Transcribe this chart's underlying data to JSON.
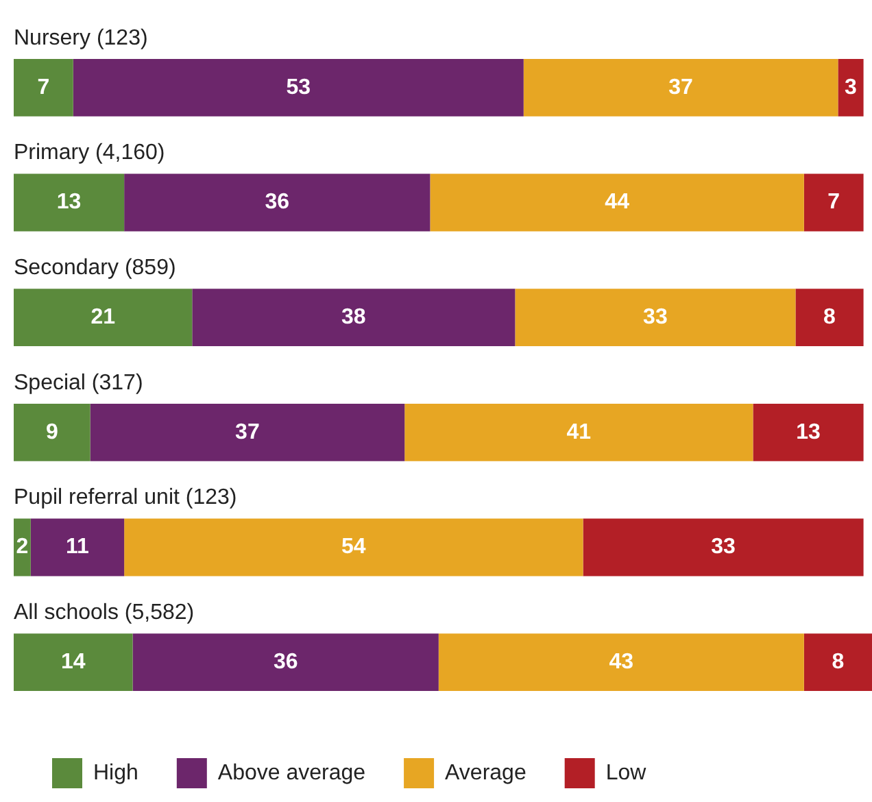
{
  "chart_data": {
    "type": "bar",
    "orientation": "horizontal",
    "stacked": true,
    "data_labels": true,
    "legend": "bottom left",
    "categories": [
      "Nursery (123)",
      "Primary (4,160)",
      "Secondary (859)",
      "Special (317)",
      "Pupil referral unit (123)",
      "All schools (5,582)"
    ],
    "series": [
      {
        "name": "High",
        "color": "#5b8a3c",
        "values": [
          7,
          13,
          21,
          9,
          2,
          14
        ]
      },
      {
        "name": "Above average",
        "color": "#6c266b",
        "values": [
          53,
          36,
          38,
          37,
          11,
          36
        ]
      },
      {
        "name": "Average",
        "color": "#e7a623",
        "values": [
          37,
          44,
          33,
          41,
          54,
          43
        ]
      },
      {
        "name": "Low",
        "color": "#b31f26",
        "values": [
          3,
          7,
          8,
          13,
          33,
          8
        ]
      }
    ]
  }
}
